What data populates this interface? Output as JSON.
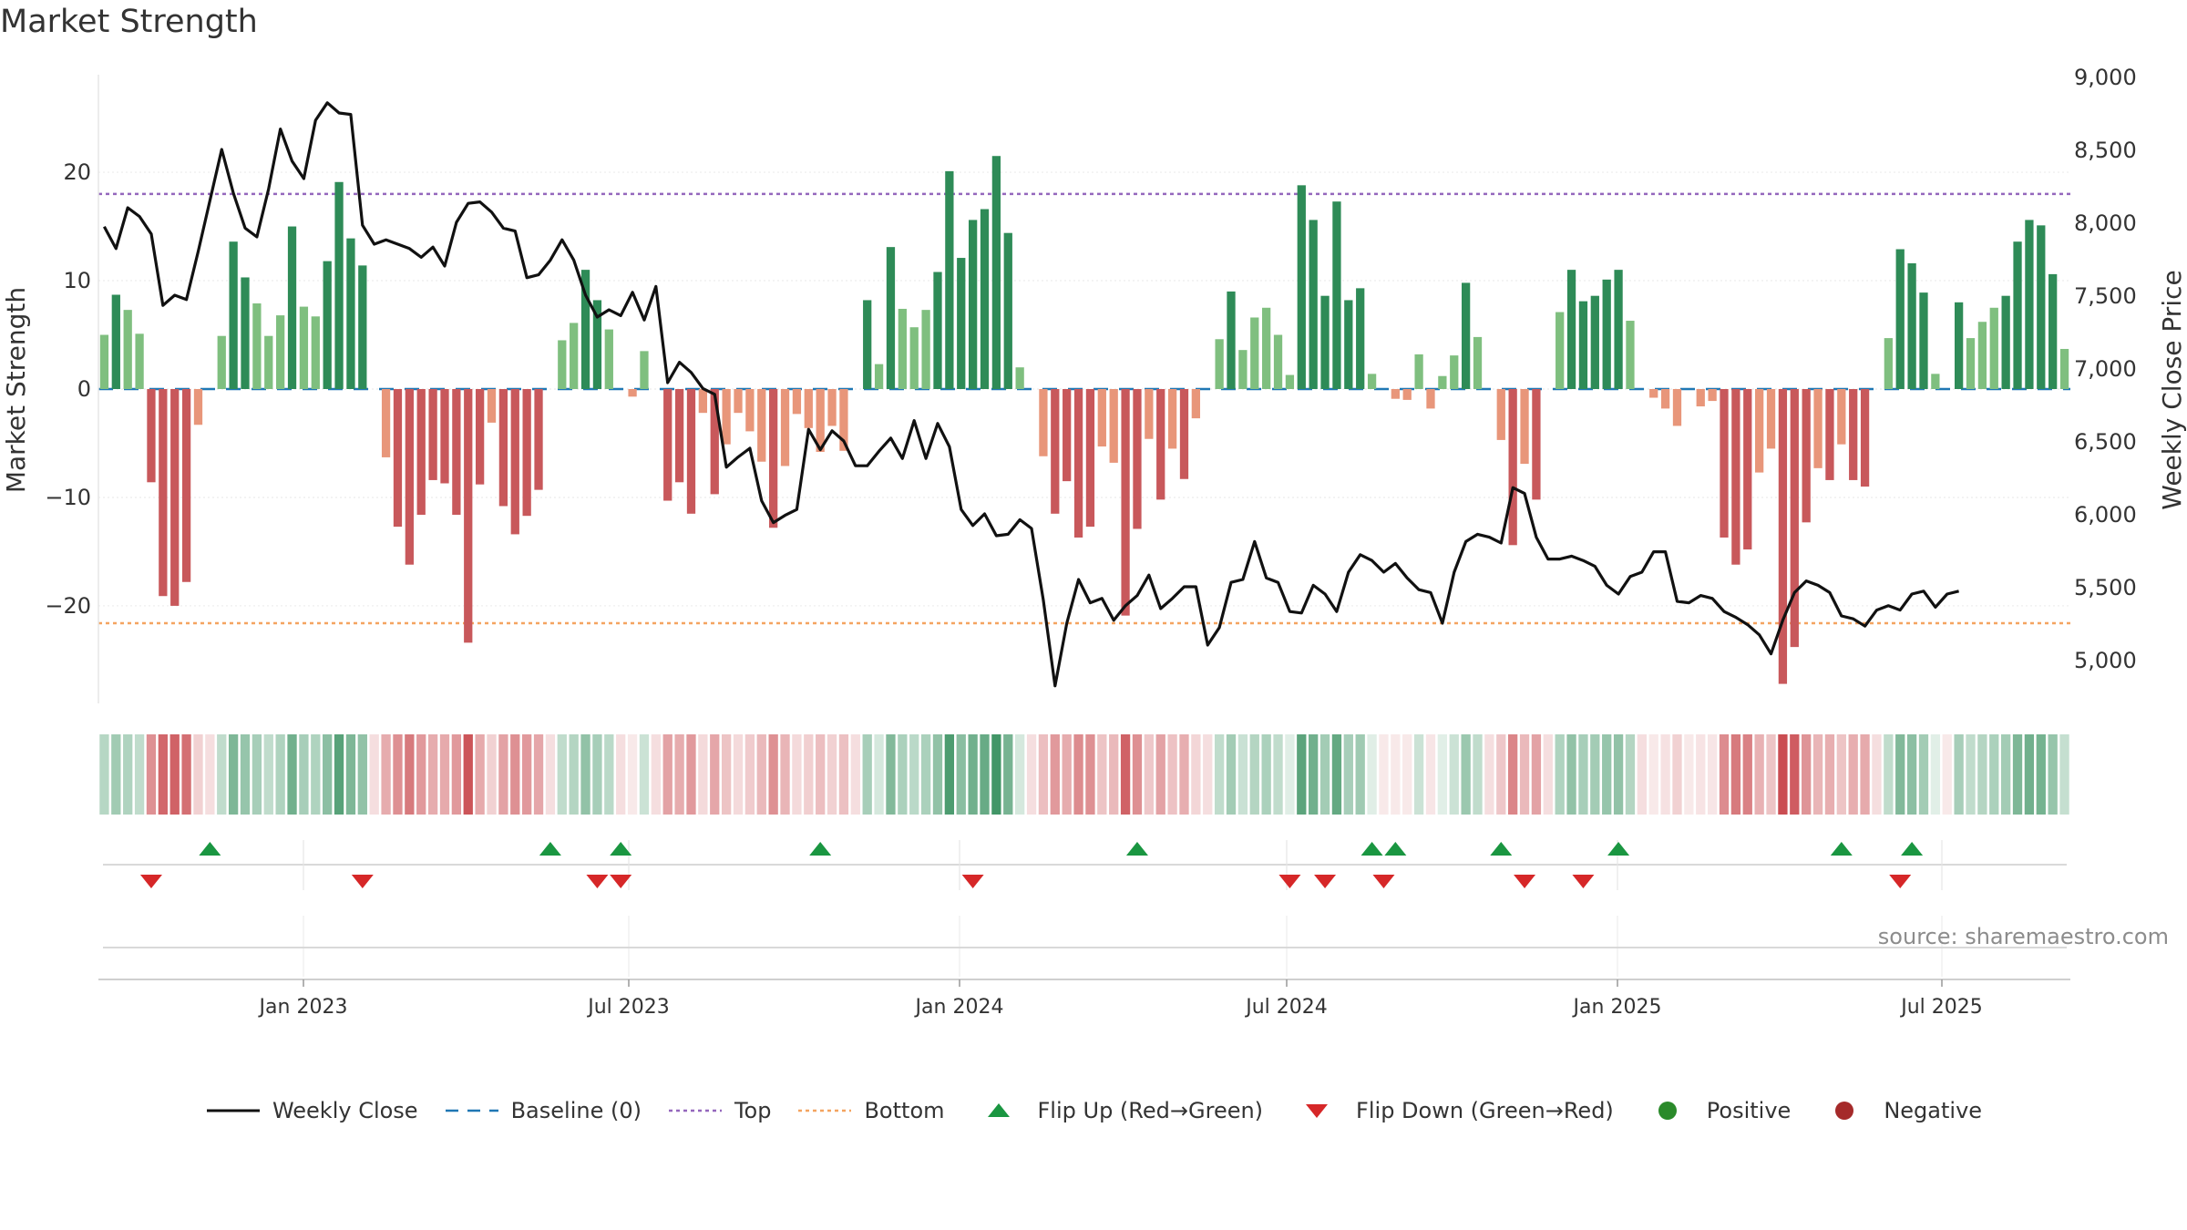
{
  "title": "Market Strength",
  "source": "source: sharemaestro.com",
  "colors": {
    "positive_dark": "#2e8b57",
    "positive_light": "#7fbf7f",
    "negative_dark": "#c8585b",
    "negative_light": "#e8967a",
    "price_line": "#111111",
    "baseline": "#1f77b4",
    "top_line": "#9467bd",
    "bottom_line": "#f4a460",
    "flip_up": "#1a9641",
    "flip_down": "#d62728"
  },
  "legend": [
    {
      "label": "Weekly Close",
      "icon": "solid-line"
    },
    {
      "label": "Baseline (0)",
      "icon": "dashed-line"
    },
    {
      "label": "Top",
      "icon": "dotted-line"
    },
    {
      "label": "Bottom",
      "icon": "dotted-line"
    },
    {
      "label": "Flip Up (Red→Green)",
      "icon": "triangle-up"
    },
    {
      "label": "Flip Down (Green→Red)",
      "icon": "triangle-down"
    },
    {
      "label": "Positive",
      "icon": "circle"
    },
    {
      "label": "Negative",
      "icon": "circle"
    }
  ],
  "chart_data": {
    "type": "bar",
    "ylabel": "Market Strength",
    "y2label": "Weekly Close Price",
    "ylim": [
      -29,
      29
    ],
    "y_ticks": [
      -20,
      -10,
      0,
      10,
      20
    ],
    "y_tick_labels": [
      "−20",
      "−10",
      "0",
      "10",
      "20"
    ],
    "y2lim": [
      4600,
      9000
    ],
    "y2_ticks": [
      5000,
      5500,
      6000,
      6500,
      7000,
      7500,
      8000,
      8500,
      9000
    ],
    "y2_tick_labels": [
      "5,000",
      "5,500",
      "6,000",
      "6,500",
      "7,000",
      "7,500",
      "8,000",
      "8,500",
      "9,000"
    ],
    "x_tick_labels": [
      "Jan 2023",
      "Jul 2023",
      "Jan 2024",
      "Jul 2024",
      "Jan 2025",
      "Jul 2025"
    ],
    "top_level": 18,
    "bottom_level": -21.6,
    "grid": true,
    "legend_position": "bottom",
    "market_strength": [
      5,
      8.7,
      7.3,
      5.1,
      -8.6,
      -19.1,
      -20,
      -17.8,
      -3.3,
      0,
      4.9,
      13.6,
      10.3,
      7.9,
      4.9,
      6.8,
      15,
      7.6,
      6.7,
      11.8,
      19.1,
      13.9,
      11.4,
      0,
      -6.3,
      -12.7,
      -16.2,
      -11.6,
      -8.4,
      -8.7,
      -11.6,
      -23.4,
      -8.8,
      -3.1,
      -10.8,
      -13.4,
      -11.7,
      -9.3,
      0,
      4.5,
      6.1,
      11,
      8.2,
      5.5,
      0,
      -0.7,
      3.5,
      0,
      -10.3,
      -8.6,
      -11.5,
      -2.2,
      -9.7,
      -5.1,
      -2.2,
      -3.9,
      -6.7,
      -12.8,
      -7.1,
      -2.3,
      -3.6,
      -5.8,
      -3.4,
      -5.7,
      0,
      8.2,
      2.3,
      13.1,
      7.4,
      5.7,
      7.3,
      10.8,
      20.1,
      12.1,
      15.6,
      16.6,
      21.5,
      14.4,
      2,
      0,
      -6.2,
      -11.5,
      -8.5,
      -13.7,
      -12.7,
      -5.3,
      -6.8,
      -20.9,
      -12.9,
      -4.6,
      -10.2,
      -5.5,
      -8.3,
      -2.7,
      0,
      4.6,
      9,
      3.6,
      6.6,
      7.5,
      5,
      1.3,
      18.8,
      15.6,
      8.6,
      17.3,
      8.2,
      9.3,
      1.4,
      0,
      -0.9,
      -1,
      3.2,
      -1.8,
      1.2,
      3.1,
      9.8,
      4.8,
      0,
      -4.7,
      -14.4,
      -6.9,
      -10.2,
      0,
      7.1,
      11,
      8.1,
      8.6,
      10.1,
      11,
      6.3,
      0,
      -0.8,
      -1.8,
      -3.4,
      0,
      -1.6,
      -1.1,
      -13.7,
      -16.2,
      -14.8,
      -7.7,
      -5.5,
      -27.2,
      -23.8,
      -12.3,
      -7.3,
      -8.4,
      -5.1,
      -8.4,
      -9,
      0,
      4.7,
      12.9,
      11.6,
      8.9,
      1.4,
      0,
      8,
      4.7,
      6.2,
      7.5,
      8.6,
      13.6,
      15.6,
      15.1,
      10.6,
      3.7
    ],
    "weekly_close": [
      7970,
      7820,
      8100,
      8040,
      7920,
      7430,
      7500,
      7470,
      7800,
      8150,
      8500,
      8200,
      7960,
      7900,
      8230,
      8640,
      8420,
      8300,
      8700,
      8820,
      8750,
      8740,
      7980,
      7850,
      7880,
      7850,
      7820,
      7760,
      7830,
      7700,
      8000,
      8130,
      8140,
      8070,
      7960,
      7940,
      7620,
      7640,
      7740,
      7880,
      7740,
      7500,
      7350,
      7400,
      7360,
      7520,
      7330,
      7560,
      6900,
      7040,
      6970,
      6860,
      6820,
      6320,
      6390,
      6450,
      6090,
      5940,
      5990,
      6030,
      6580,
      6440,
      6570,
      6500,
      6330,
      6330,
      6430,
      6520,
      6380,
      6640,
      6380,
      6620,
      6460,
      6030,
      5920,
      6000,
      5850,
      5860,
      5960,
      5900,
      5410,
      4820,
      5250,
      5550,
      5390,
      5420,
      5270,
      5370,
      5440,
      5580,
      5350,
      5420,
      5500,
      5500,
      5100,
      5220,
      5530,
      5550,
      5810,
      5560,
      5530,
      5330,
      5320,
      5510,
      5450,
      5330,
      5600,
      5720,
      5680,
      5600,
      5660,
      5560,
      5480,
      5460,
      5250,
      5600,
      5810,
      5860,
      5840,
      5800,
      6180,
      6140,
      5840,
      5690,
      5690,
      5710,
      5680,
      5640,
      5510,
      5450,
      5570,
      5600,
      5740,
      5740,
      5400,
      5390,
      5440,
      5420,
      5330,
      5290,
      5240,
      5170,
      5040,
      5270,
      5460,
      5540,
      5510,
      5460,
      5300,
      5280,
      5230,
      5340,
      5370,
      5340,
      5450,
      5470,
      5360,
      5450,
      5470
    ],
    "heat_intensity": [
      0.35,
      0.45,
      0.38,
      0.3,
      0.6,
      0.82,
      0.85,
      0.78,
      0.25,
      0.18,
      0.3,
      0.62,
      0.5,
      0.42,
      0.3,
      0.38,
      0.68,
      0.42,
      0.38,
      0.55,
      0.8,
      0.62,
      0.52,
      0.18,
      0.45,
      0.6,
      0.72,
      0.55,
      0.45,
      0.46,
      0.55,
      0.92,
      0.46,
      0.25,
      0.5,
      0.6,
      0.55,
      0.48,
      0.18,
      0.3,
      0.36,
      0.52,
      0.42,
      0.33,
      0.18,
      0.12,
      0.25,
      0.18,
      0.5,
      0.45,
      0.55,
      0.2,
      0.48,
      0.32,
      0.2,
      0.28,
      0.38,
      0.6,
      0.4,
      0.2,
      0.26,
      0.35,
      0.25,
      0.34,
      0.18,
      0.42,
      0.2,
      0.6,
      0.4,
      0.33,
      0.4,
      0.52,
      0.85,
      0.56,
      0.68,
      0.72,
      0.9,
      0.65,
      0.2,
      0.18,
      0.35,
      0.55,
      0.45,
      0.62,
      0.6,
      0.32,
      0.38,
      0.85,
      0.6,
      0.3,
      0.5,
      0.33,
      0.44,
      0.22,
      0.18,
      0.3,
      0.44,
      0.26,
      0.36,
      0.4,
      0.3,
      0.15,
      0.78,
      0.68,
      0.44,
      0.74,
      0.42,
      0.46,
      0.15,
      0.12,
      0.12,
      0.12,
      0.25,
      0.14,
      0.14,
      0.25,
      0.48,
      0.3,
      0.18,
      0.3,
      0.66,
      0.38,
      0.5,
      0.18,
      0.38,
      0.52,
      0.42,
      0.44,
      0.5,
      0.52,
      0.36,
      0.18,
      0.12,
      0.16,
      0.25,
      0.12,
      0.15,
      0.14,
      0.62,
      0.72,
      0.68,
      0.42,
      0.32,
      0.96,
      0.88,
      0.58,
      0.4,
      0.44,
      0.32,
      0.44,
      0.46,
      0.18,
      0.3,
      0.6,
      0.55,
      0.44,
      0.14,
      0.12,
      0.42,
      0.3,
      0.36,
      0.4,
      0.44,
      0.62,
      0.68,
      0.66,
      0.5,
      0.28
    ],
    "flip_up_weeks": [
      9,
      38,
      44,
      61,
      88,
      108,
      110,
      119,
      129,
      148,
      154
    ],
    "flip_down_weeks": [
      4,
      22,
      42,
      44,
      74,
      101,
      104,
      109,
      121,
      126,
      153
    ]
  }
}
